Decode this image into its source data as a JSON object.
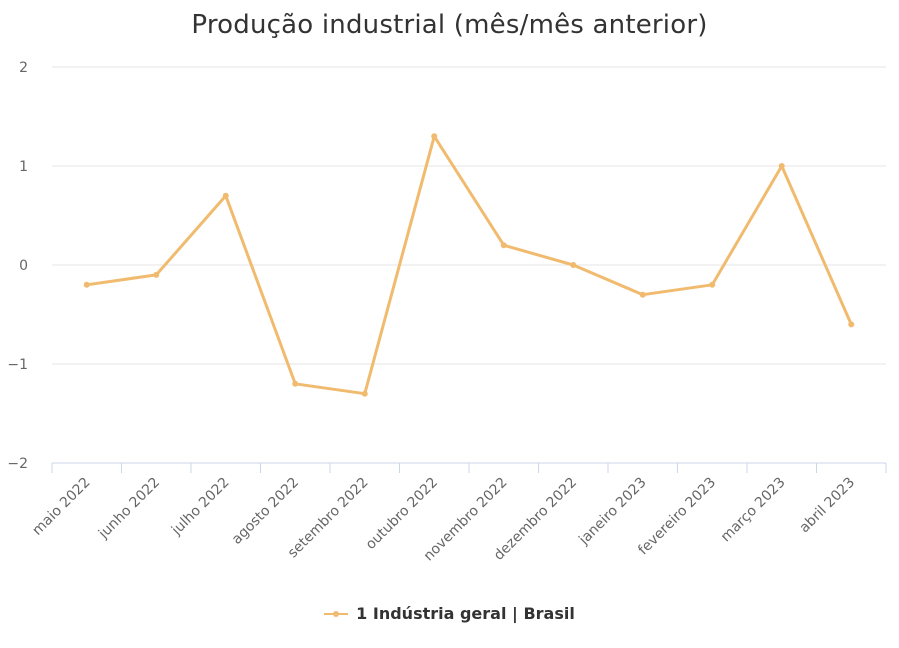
{
  "chart_data": {
    "type": "line",
    "title": "Produção industrial (mês/mês anterior)",
    "xlabel": "",
    "ylabel": "",
    "categories": [
      "maio 2022",
      "junho 2022",
      "julho 2022",
      "agosto 2022",
      "setembro 2022",
      "outubro 2022",
      "novembro 2022",
      "dezembro 2022",
      "janeiro 2023",
      "fevereiro 2023",
      "março 2023",
      "abril 2023"
    ],
    "series": [
      {
        "name": "1 Indústria geral | Brasil",
        "color": "#f1bb6f",
        "values": [
          -0.2,
          -0.1,
          0.7,
          -1.2,
          -1.3,
          1.3,
          0.2,
          0.0,
          -0.3,
          -0.2,
          1.0,
          -0.6
        ]
      }
    ],
    "ylim": [
      -2,
      2
    ],
    "yticks": [
      2,
      1,
      0,
      -1,
      -2
    ],
    "ytick_labels": [
      "2",
      "1",
      "0",
      "−1",
      "−2"
    ],
    "grid": true,
    "legend_position": "bottom-center"
  }
}
